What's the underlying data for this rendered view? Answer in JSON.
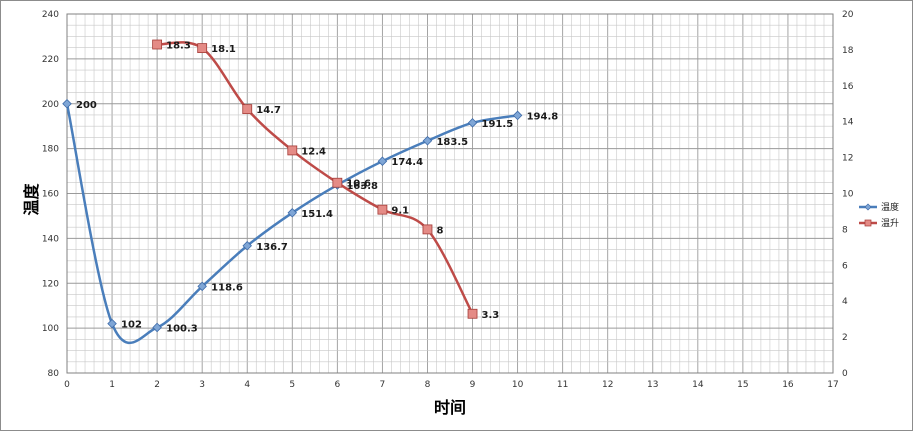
{
  "chart_data": {
    "type": "line",
    "xlabel": "时间",
    "ylabel": "温度",
    "xlim": [
      0,
      17
    ],
    "x_ticks": [
      0,
      1,
      2,
      3,
      4,
      5,
      6,
      7,
      8,
      9,
      10,
      11,
      12,
      13,
      14,
      15,
      16,
      17
    ],
    "ylim_left": [
      80,
      240
    ],
    "y_ticks_left": [
      80,
      100,
      120,
      140,
      160,
      180,
      200,
      220,
      240
    ],
    "ylim_right": [
      0,
      20
    ],
    "y_ticks_right": [
      0,
      2,
      4,
      6,
      8,
      10,
      12,
      14,
      16,
      18,
      20
    ],
    "grid": true,
    "legend_position": "right",
    "series": [
      {
        "name": "温度",
        "axis": "left",
        "color": "#4a7ebb",
        "marker": "diamond",
        "points": [
          [
            0,
            200
          ],
          [
            1,
            102
          ],
          [
            2,
            100.3
          ],
          [
            3,
            118.6
          ],
          [
            4,
            136.7
          ],
          [
            5,
            151.4
          ],
          [
            6,
            163.8
          ],
          [
            7,
            174.4
          ],
          [
            8,
            183.5
          ],
          [
            9,
            191.5
          ],
          [
            10,
            194.8
          ]
        ],
        "labels": [
          "200",
          "102",
          "100.3",
          "118.6",
          "136.7",
          "151.4",
          "163.8",
          "174.4",
          "183.5",
          "191.5",
          "194.8"
        ]
      },
      {
        "name": "温升",
        "axis": "right",
        "color": "#be4b48",
        "marker": "square",
        "points": [
          [
            2,
            18.3
          ],
          [
            3,
            18.1
          ],
          [
            4,
            14.7
          ],
          [
            5,
            12.4
          ],
          [
            6,
            10.6
          ],
          [
            7,
            9.1
          ],
          [
            8,
            8
          ],
          [
            9,
            3.3
          ]
        ],
        "labels": [
          "18.3",
          "18.1",
          "14.7",
          "12.4",
          "10.6",
          "9.1",
          "8",
          "3.3"
        ]
      }
    ]
  }
}
